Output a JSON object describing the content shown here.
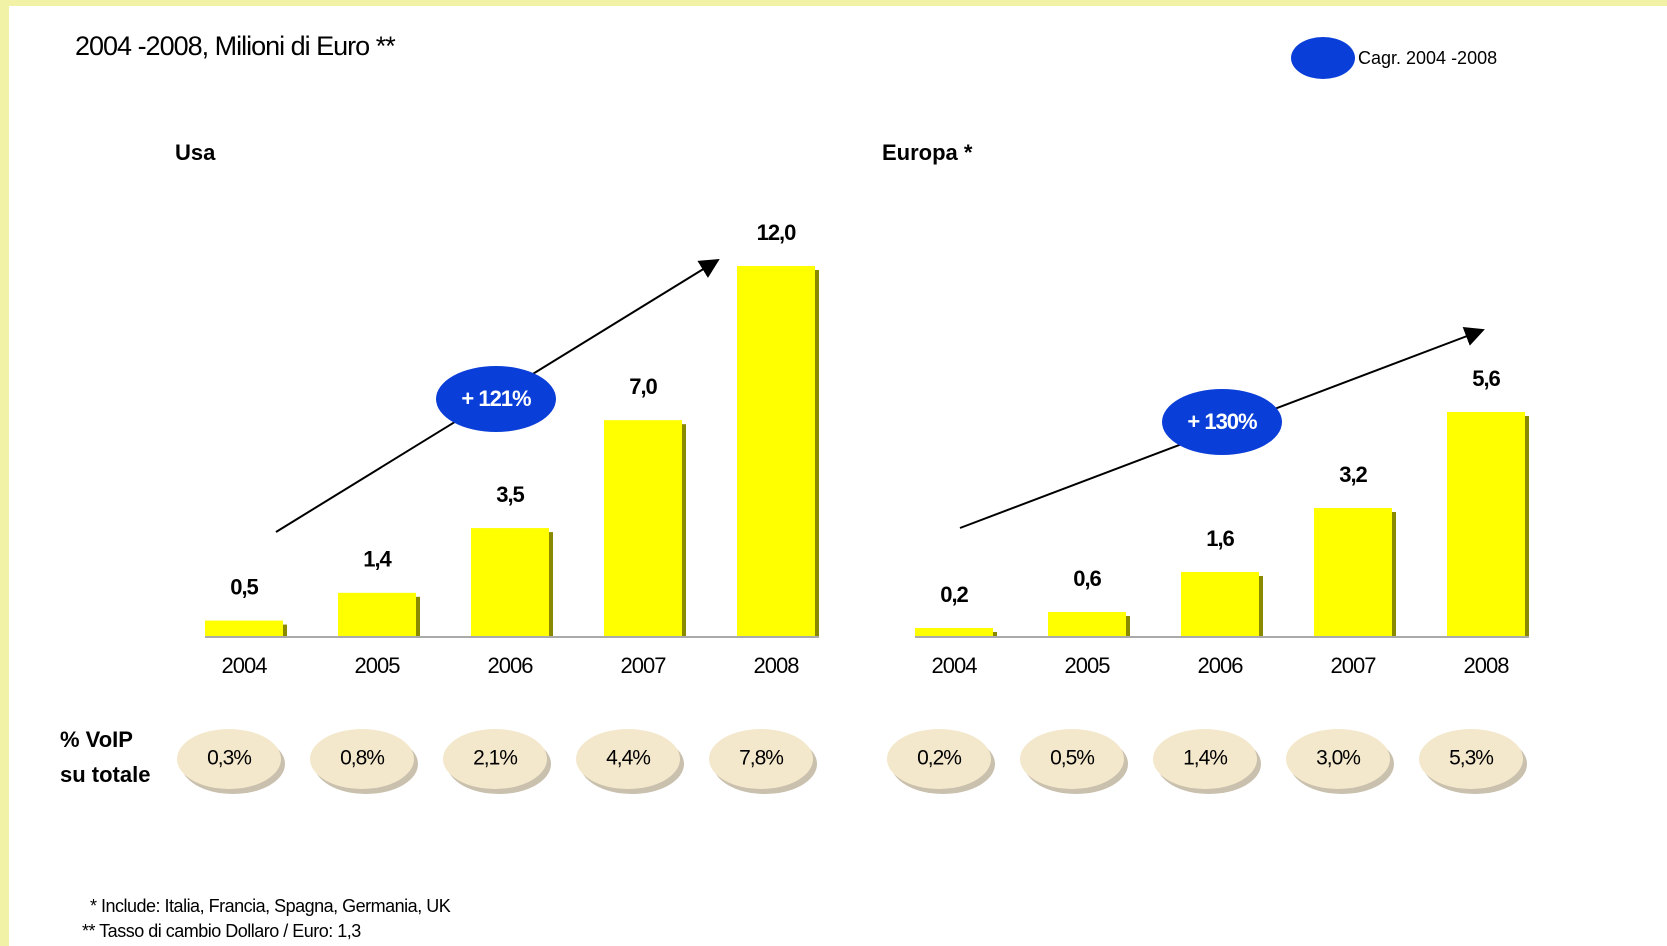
{
  "title": "2004 -2008, Milioni di Euro **",
  "legend": "Cagr. 2004 -2008",
  "share_label": [
    "% VoIP",
    "su totale"
  ],
  "footnotes": [
    "* Include: Italia, Francia, Spagna, Germania, UK",
    "** Tasso di cambio Dollaro / Euro: 1,3"
  ],
  "chart_data": [
    {
      "type": "bar",
      "title": "Usa",
      "color": "#ffff00",
      "categories": [
        "2004",
        "2005",
        "2006",
        "2007",
        "2008"
      ],
      "values": [
        0.5,
        1.4,
        3.5,
        7.0,
        12.0
      ],
      "value_labels": [
        "0,5",
        "1,4",
        "3,5",
        "7,0",
        "12,0"
      ],
      "cagr": {
        "value": 121,
        "label": "+ 121%"
      },
      "share_values": [
        0.3,
        0.8,
        2.1,
        4.4,
        7.8
      ],
      "share_labels": [
        "0,3%",
        "0,8%",
        "2,1%",
        "4,4%",
        "7,8%"
      ]
    },
    {
      "type": "bar",
      "title": "Europa *",
      "color": "#ffff00",
      "categories": [
        "2004",
        "2005",
        "2006",
        "2007",
        "2008"
      ],
      "values": [
        0.2,
        0.6,
        1.6,
        3.2,
        5.6
      ],
      "value_labels": [
        "0,2",
        "0,6",
        "1,6",
        "3,2",
        "5,6"
      ],
      "cagr": {
        "value": 130,
        "label": "+ 130%"
      },
      "share_values": [
        0.2,
        0.5,
        1.4,
        3.0,
        5.3
      ],
      "share_labels": [
        "0,2%",
        "0,5%",
        "1,4%",
        "3,0%",
        "5,3%"
      ]
    }
  ]
}
